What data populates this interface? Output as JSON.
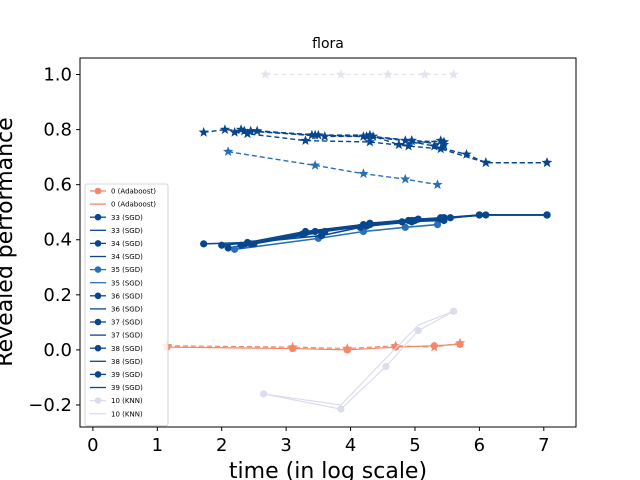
{
  "chart_data": {
    "type": "line",
    "title": "flora",
    "xlabel": "time (in log scale)",
    "ylabel": "Revealed performance",
    "xlim": [
      -0.2,
      7.5
    ],
    "ylim": [
      -0.28,
      1.06
    ],
    "xticks": [
      0,
      1,
      2,
      3,
      4,
      5,
      6,
      7
    ],
    "yticks": [
      -0.2,
      0.0,
      0.2,
      0.4,
      0.6,
      0.8,
      1.0
    ],
    "ytick_labels": [
      "−0.2",
      "0.0",
      "0.2",
      "0.4",
      "0.6",
      "0.8",
      "1.0"
    ],
    "grid": false,
    "legend_position": "lower-left",
    "legend_entries": [
      {
        "label": "0 (Adaboost)",
        "kind": "marker",
        "color": "#f4876a"
      },
      {
        "label": "0 (Adaboost)",
        "kind": "line",
        "color": "#f4876a"
      },
      {
        "label": "33 (SGD)",
        "kind": "marker",
        "color": "#08468e"
      },
      {
        "label": "33 (SGD)",
        "kind": "line",
        "color": "#08468e"
      },
      {
        "label": "34 (SGD)",
        "kind": "marker",
        "color": "#08468e"
      },
      {
        "label": "34 (SGD)",
        "kind": "line",
        "color": "#08468e"
      },
      {
        "label": "35 (SGD)",
        "kind": "marker",
        "color": "#2a70b6"
      },
      {
        "label": "35 (SGD)",
        "kind": "line",
        "color": "#2a70b6"
      },
      {
        "label": "36 (SGD)",
        "kind": "marker",
        "color": "#08468e"
      },
      {
        "label": "36 (SGD)",
        "kind": "line",
        "color": "#08468e"
      },
      {
        "label": "37 (SGD)",
        "kind": "marker",
        "color": "#08468e"
      },
      {
        "label": "37 (SGD)",
        "kind": "line",
        "color": "#08468e"
      },
      {
        "label": "38 (SGD)",
        "kind": "marker",
        "color": "#08468e"
      },
      {
        "label": "38 (SGD)",
        "kind": "line",
        "color": "#08468e"
      },
      {
        "label": "39 (SGD)",
        "kind": "marker",
        "color": "#08468e"
      },
      {
        "label": "39 (SGD)",
        "kind": "line",
        "color": "#08468e"
      },
      {
        "label": "10 (KNN)",
        "kind": "marker",
        "color": "#dcdcef"
      },
      {
        "label": "10 (KNN)",
        "kind": "line",
        "color": "#dcdcef"
      }
    ],
    "series": [
      {
        "color": "#f4876a",
        "style": "solid",
        "marker": "circle",
        "width": 1.2,
        "x": [
          1.15,
          3.1,
          3.95,
          4.7,
          5.3,
          5.7
        ],
        "y": [
          0.01,
          0.005,
          0.0,
          0.01,
          0.015,
          0.02
        ]
      },
      {
        "color": "#f4876a",
        "style": "dashed",
        "marker": "star",
        "width": 1.2,
        "x": [
          1.15,
          3.1,
          3.95,
          4.7,
          5.3,
          5.7
        ],
        "y": [
          0.015,
          0.01,
          0.005,
          0.015,
          0.01,
          0.025
        ]
      },
      {
        "color": "#dcdcef",
        "style": "solid",
        "marker": "circle",
        "width": 1.2,
        "x": [
          2.65,
          3.85,
          4.55,
          5.05,
          5.6
        ],
        "y": [
          -0.16,
          -0.215,
          -0.06,
          0.07,
          0.14
        ]
      },
      {
        "color": "#dcdcef",
        "style": "solid",
        "marker": "none",
        "width": 1.2,
        "x": [
          2.65,
          3.85,
          4.55,
          5.05,
          5.6
        ],
        "y": [
          -0.16,
          -0.2,
          -0.03,
          0.09,
          0.14
        ]
      },
      {
        "color": "#e3e3f2",
        "style": "dashed",
        "marker": "star",
        "width": 1.2,
        "x": [
          2.68,
          3.85,
          4.58,
          5.15,
          5.6
        ],
        "y": [
          1.0,
          1.0,
          1.0,
          1.0,
          1.0
        ]
      },
      {
        "color": "#08468e",
        "style": "solid",
        "marker": "circle",
        "width": 1.6,
        "x": [
          1.72,
          2.4,
          3.3,
          4.2,
          4.9,
          5.4
        ],
        "y": [
          0.385,
          0.39,
          0.43,
          0.455,
          0.47,
          0.48
        ]
      },
      {
        "color": "#08468e",
        "style": "solid",
        "marker": "circle",
        "width": 1.6,
        "x": [
          2.1,
          2.35,
          3.25,
          4.25,
          4.95,
          5.45,
          6.0,
          7.05
        ],
        "y": [
          0.37,
          0.38,
          0.42,
          0.45,
          0.465,
          0.48,
          0.49,
          0.49
        ]
      },
      {
        "color": "#2a70b6",
        "style": "solid",
        "marker": "circle",
        "width": 1.6,
        "x": [
          2.2,
          3.5,
          4.2,
          4.85,
          5.35
        ],
        "y": [
          0.365,
          0.405,
          0.43,
          0.445,
          0.455
        ]
      },
      {
        "color": "#08468e",
        "style": "solid",
        "marker": "circle",
        "width": 1.6,
        "x": [
          2.45,
          3.45,
          4.3,
          4.95,
          5.4,
          6.0,
          7.05
        ],
        "y": [
          0.385,
          0.43,
          0.455,
          0.47,
          0.475,
          0.49,
          0.49
        ]
      },
      {
        "color": "#08468e",
        "style": "solid",
        "marker": "circle",
        "width": 1.6,
        "x": [
          2.0,
          3.55,
          4.15,
          4.8,
          5.45
        ],
        "y": [
          0.38,
          0.415,
          0.445,
          0.465,
          0.47
        ]
      },
      {
        "color": "#08468e",
        "style": "solid",
        "marker": "circle",
        "width": 1.6,
        "x": [
          2.3,
          3.3,
          4.25,
          5.0,
          5.45
        ],
        "y": [
          0.38,
          0.425,
          0.45,
          0.47,
          0.48
        ]
      },
      {
        "color": "#08468e",
        "style": "solid",
        "marker": "circle",
        "width": 1.6,
        "x": [
          2.5,
          3.6,
          4.3,
          5.05,
          5.55,
          6.1,
          7.05
        ],
        "y": [
          0.385,
          0.43,
          0.46,
          0.475,
          0.48,
          0.49,
          0.49
        ]
      },
      {
        "color": "#08468e",
        "style": "dashed",
        "marker": "star",
        "width": 1.4,
        "x": [
          1.72,
          2.05,
          2.35,
          3.4,
          4.2,
          4.85,
          5.3,
          5.8,
          6.1,
          7.05
        ],
        "y": [
          0.79,
          0.8,
          0.795,
          0.78,
          0.775,
          0.76,
          0.74,
          0.71,
          0.68,
          0.68
        ]
      },
      {
        "color": "#08468e",
        "style": "dashed",
        "marker": "star",
        "width": 1.4,
        "x": [
          2.2,
          2.4,
          3.3,
          4.3,
          4.9,
          5.4,
          6.1,
          7.05
        ],
        "y": [
          0.79,
          0.785,
          0.76,
          0.755,
          0.74,
          0.73,
          0.68,
          0.68
        ]
      },
      {
        "color": "#2a70b6",
        "style": "dashed",
        "marker": "star",
        "width": 1.4,
        "x": [
          2.1,
          3.45,
          4.2,
          4.85,
          5.35
        ],
        "y": [
          0.72,
          0.67,
          0.64,
          0.62,
          0.6
        ]
      },
      {
        "color": "#08468e",
        "style": "dashed",
        "marker": "star",
        "width": 1.4,
        "x": [
          2.3,
          3.45,
          4.35,
          4.95,
          5.45
        ],
        "y": [
          0.8,
          0.78,
          0.775,
          0.76,
          0.755
        ]
      },
      {
        "color": "#08468e",
        "style": "dashed",
        "marker": "star",
        "width": 1.4,
        "x": [
          2.45,
          3.6,
          4.25,
          4.95,
          5.45
        ],
        "y": [
          0.795,
          0.775,
          0.775,
          0.76,
          0.745
        ]
      },
      {
        "color": "#08468e",
        "style": "dashed",
        "marker": "star",
        "width": 1.4,
        "x": [
          2.55,
          3.5,
          4.3,
          4.75,
          5.4
        ],
        "y": [
          0.795,
          0.78,
          0.78,
          0.745,
          0.76
        ]
      }
    ]
  }
}
